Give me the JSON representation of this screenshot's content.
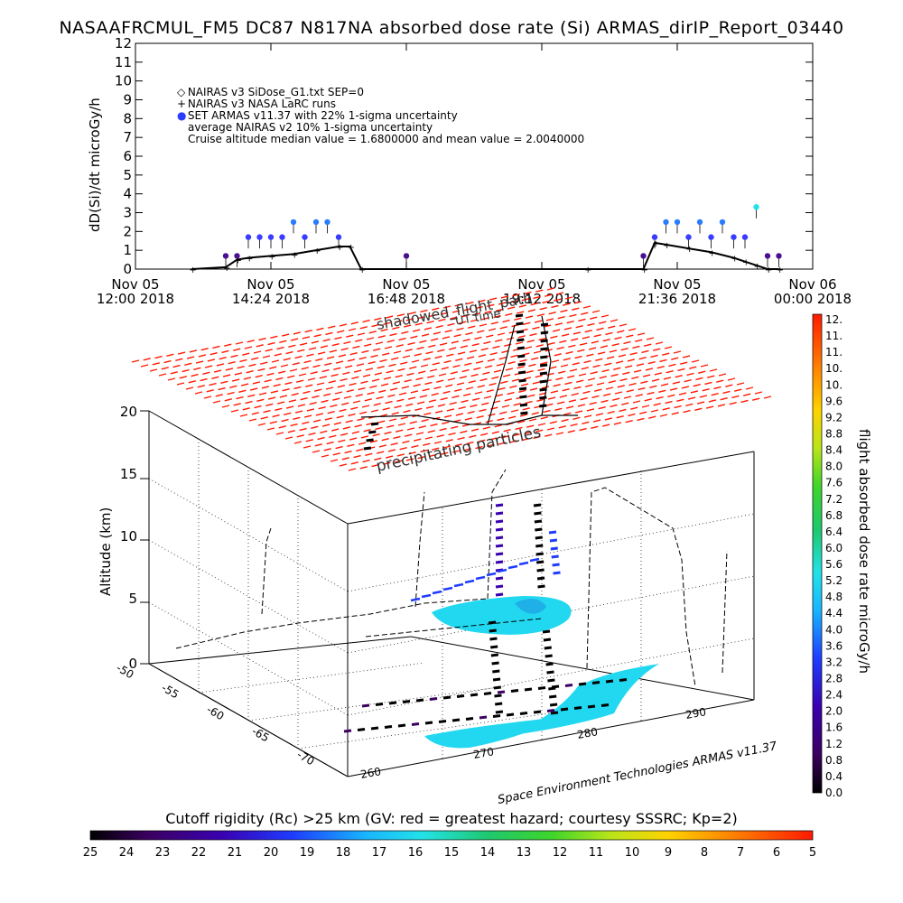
{
  "title": "NASAAFRCMUL_FM5 DC87 N817NA absorbed dose rate (Si) ARMAS_dirIP_Report_03440",
  "top_chart": {
    "ylabel": "dD(Si)/dt microGy/h",
    "yticks": [
      "0",
      "1",
      "2",
      "3",
      "4",
      "5",
      "6",
      "7",
      "8",
      "9",
      "10",
      "11",
      "12"
    ],
    "xticks": [
      {
        "line1": "Nov 05",
        "line2": "12:00 2018"
      },
      {
        "line1": "Nov 05",
        "line2": "14:24 2018"
      },
      {
        "line1": "Nov 05",
        "line2": "16:48 2018"
      },
      {
        "line1": "Nov 05",
        "line2": "19:12 2018"
      },
      {
        "line1": "Nov 05",
        "line2": "21:36 2018"
      },
      {
        "line1": "Nov 06",
        "line2": "00:00 2018"
      }
    ],
    "legend": [
      "NAIRAS v3 SiDose_G1.txt SEP=0",
      "NAIRAS v3 NASA LaRC runs",
      "SET ARMAS v11.37 with 22% 1-sigma uncertainty",
      "average NAIRAS v2 10% 1-sigma uncertainty",
      "Cruise altitude median value = 1.6800000 and mean value = 2.0040000"
    ]
  },
  "chart_data": [
    {
      "type": "scatter",
      "title": "NASAAFRCMUL_FM5 DC87 N817NA absorbed dose rate (Si) ARMAS_dirIP_Report_03440",
      "ylabel": "dD(Si)/dt microGy/h",
      "ylim": [
        0,
        12
      ],
      "x_axis": "Nov 05 12:00 2018 to Nov 06 00:00 2018",
      "series": [
        {
          "name": "SET ARMAS v11.37 with 22% 1-sigma uncertainty",
          "x": [
            "13:36",
            "13:48",
            "14:00",
            "14:12",
            "14:24",
            "14:36",
            "14:48",
            "15:00",
            "15:12",
            "15:24",
            "15:36",
            "16:48",
            "21:00",
            "21:12",
            "21:24",
            "21:36",
            "21:48",
            "22:00",
            "22:12",
            "22:24",
            "22:36",
            "22:48",
            "23:00",
            "23:12",
            "23:24"
          ],
          "values": [
            0.7,
            0.7,
            1.7,
            1.7,
            1.7,
            1.7,
            2.5,
            1.7,
            2.5,
            2.5,
            1.7,
            0.7,
            0.7,
            1.7,
            2.5,
            2.5,
            1.7,
            2.5,
            1.7,
            2.5,
            1.7,
            1.7,
            3.3,
            0.7,
            0.7
          ]
        },
        {
          "name": "NAIRAS v3 NASA LaRC runs",
          "x": [
            "13:00",
            "13:36",
            "13:48",
            "14:00",
            "14:24",
            "14:48",
            "15:12",
            "15:36",
            "15:48",
            "16:00",
            "20:00",
            "21:00",
            "21:12",
            "21:24",
            "21:48",
            "22:12",
            "22:36",
            "22:48",
            "23:00",
            "23:12",
            "23:24"
          ],
          "values": [
            0.0,
            0.1,
            0.5,
            0.6,
            0.7,
            0.8,
            1.0,
            1.2,
            1.2,
            0.0,
            0.0,
            0.0,
            1.4,
            1.3,
            1.1,
            0.9,
            0.6,
            0.4,
            0.2,
            0.0,
            0.0
          ]
        }
      ]
    },
    {
      "type": "3d-scatter",
      "zlabel": "Altitude (km)",
      "zticks": [
        "0",
        "5",
        "10",
        "15",
        "20"
      ],
      "lat_ticks": [
        "-50",
        "-55",
        "-60",
        "-65",
        "-70"
      ],
      "lon_ticks": [
        "260",
        "270",
        "280",
        "290"
      ],
      "annotations": [
        "shadowed_flight_path",
        "UT time",
        "precipitating particles"
      ],
      "colorbar_label": "flight absorbed dose rate microGy/h",
      "colorbar_ticks": [
        "0.0",
        "0.4",
        "0.8",
        "1.2",
        "1.6",
        "2.0",
        "2.4",
        "2.8",
        "3.2",
        "3.6",
        "4.0",
        "4.4",
        "4.8",
        "5.2",
        "5.6",
        "6.0",
        "6.4",
        "6.8",
        "7.2",
        "7.6",
        "8.0",
        "8.4",
        "8.8",
        "9.2",
        "9.6",
        "10.",
        "10.",
        "11.",
        "11.",
        "12."
      ]
    }
  ],
  "plot3d": {
    "zlabel": "Altitude (km)",
    "zticks": [
      "0",
      "5",
      "10",
      "15",
      "20"
    ],
    "lat_ticks": [
      "-50",
      "-55",
      "-60",
      "-65",
      "-70"
    ],
    "lon_ticks": [
      "260",
      "270",
      "280",
      "290"
    ],
    "annotation_path": "shadowed_flight_path",
    "annotation_ut": "UT time",
    "annotation_particles": "precipitating particles",
    "credit": "Space Environment Technologies ARMAS v11.37"
  },
  "colorbar_right": {
    "label": "flight absorbed dose rate microGy/h",
    "ticks": [
      "0.0",
      "0.4",
      "0.8",
      "1.2",
      "1.6",
      "2.0",
      "2.4",
      "2.8",
      "3.2",
      "3.6",
      "4.0",
      "4.4",
      "4.8",
      "5.2",
      "5.6",
      "6.0",
      "6.4",
      "6.8",
      "7.2",
      "7.6",
      "8.0",
      "8.4",
      "8.8",
      "9.2",
      "9.6",
      "10.",
      "10.",
      "11.",
      "11.",
      "12."
    ]
  },
  "colorbar_bottom": {
    "label": "Cutoff rigidity (Rc) >25 km (GV: red = greatest hazard; courtesy SSSRC; Kp=2)",
    "ticks": [
      "25",
      "24",
      "23",
      "22",
      "21",
      "20",
      "19",
      "18",
      "17",
      "16",
      "15",
      "14",
      "13",
      "12",
      "11",
      "10",
      "9",
      "8",
      "7",
      "6",
      "5"
    ]
  }
}
